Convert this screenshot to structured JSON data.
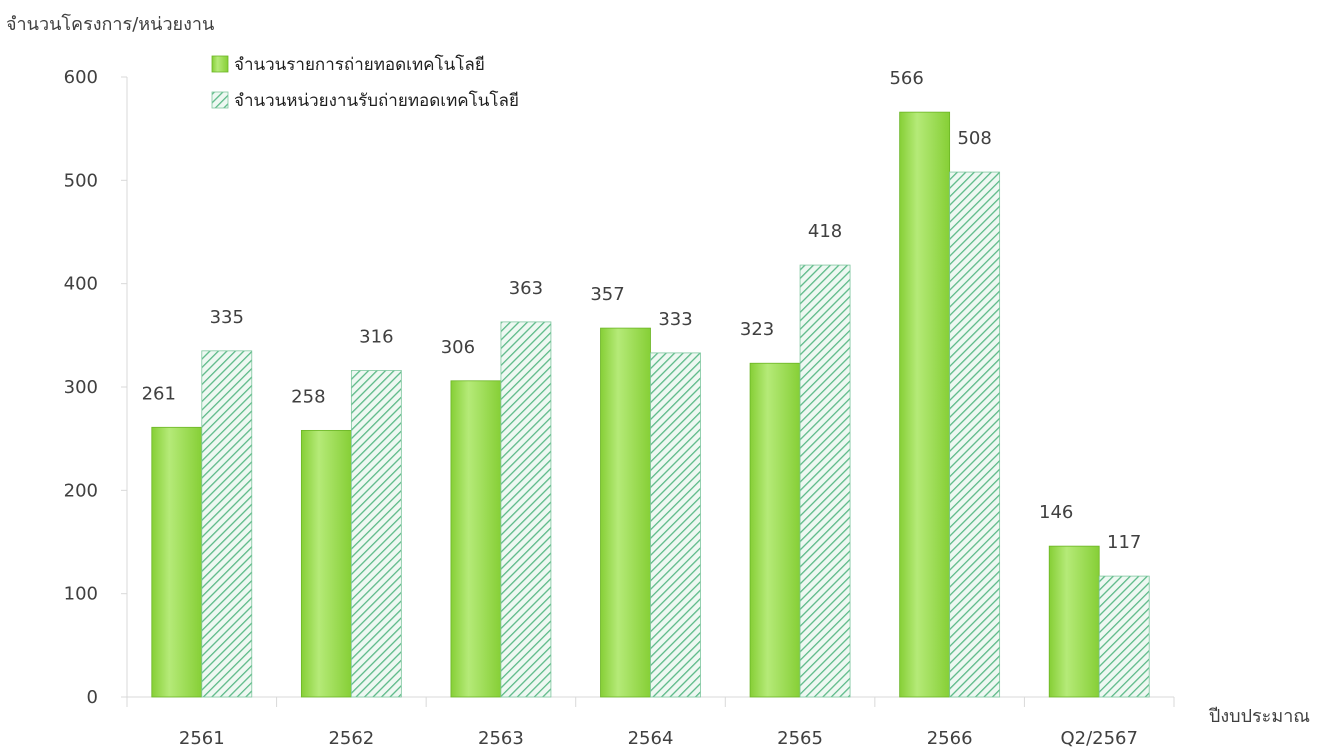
{
  "chart_data": {
    "type": "bar",
    "ylabel": "จำนวนโครงการ/หน่วยงาน",
    "xlabel": "ปีงบประมาณ",
    "categories": [
      "2561",
      "2562",
      "2563",
      "2564",
      "2565",
      "2566",
      "Q2/2567"
    ],
    "series": [
      {
        "name": "จำนวนรายการถ่ายทอดเทคโนโลยี",
        "values": [
          261,
          258,
          306,
          357,
          323,
          566,
          146
        ]
      },
      {
        "name": "จำนวนหน่วยงานรับถ่ายทอดเทคโนโลยี",
        "values": [
          335,
          316,
          363,
          333,
          418,
          508,
          117
        ]
      }
    ],
    "ylim": [
      0,
      600
    ],
    "yticks": [
      0,
      100,
      200,
      300,
      400,
      500,
      600
    ],
    "grid": false,
    "legend_position": "top-left",
    "colors": {
      "series1": "#86cf36",
      "series1_light": "#b5ea78",
      "series2": "#5bb987",
      "series2_bg": "#eef8f2"
    }
  }
}
